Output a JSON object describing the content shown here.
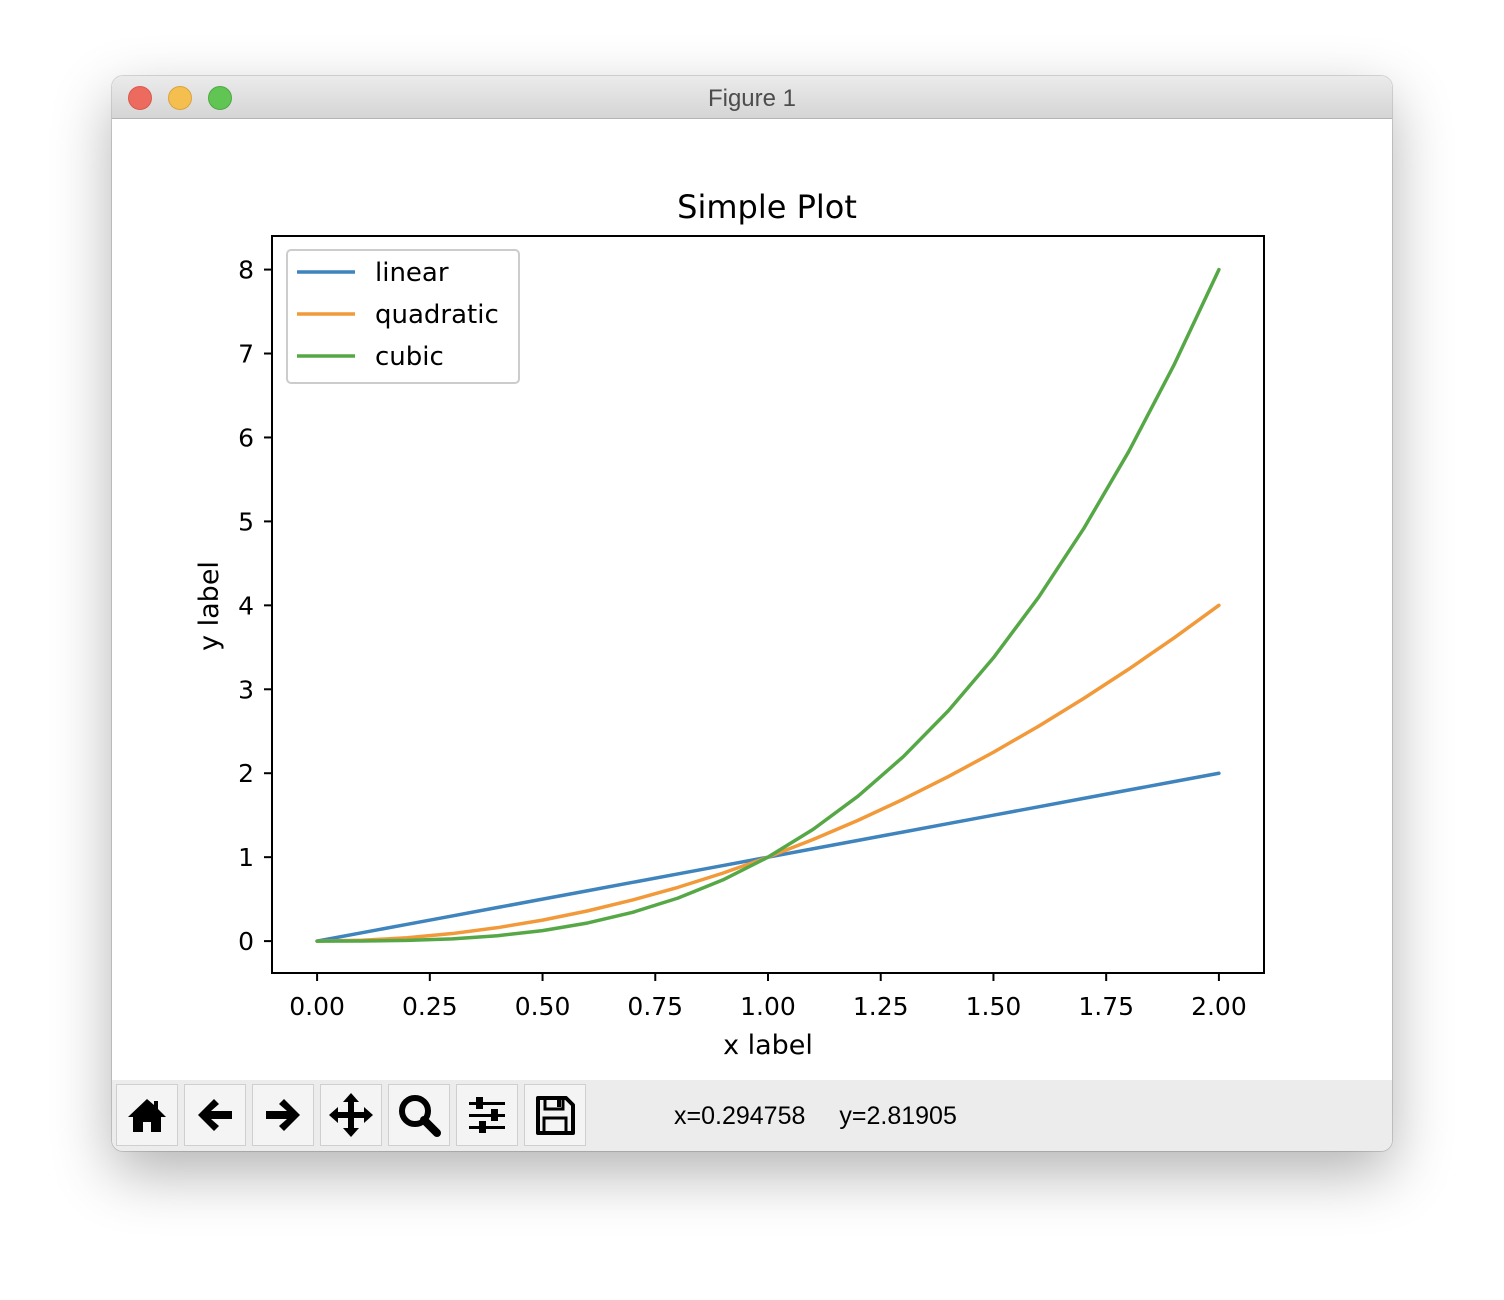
{
  "window": {
    "title": "Figure 1"
  },
  "toolbar": {
    "buttons": [
      {
        "icon": "home-icon"
      },
      {
        "icon": "back-arrow-icon"
      },
      {
        "icon": "forward-arrow-icon"
      },
      {
        "icon": "pan-move-icon"
      },
      {
        "icon": "zoom-magnifier-icon"
      },
      {
        "icon": "configure-subplots-icon"
      },
      {
        "icon": "save-floppy-icon"
      }
    ],
    "coords": {
      "x": "x=0.294758",
      "y": "y=2.81905"
    }
  },
  "chart_data": {
    "type": "line",
    "title": "Simple Plot",
    "xlabel": "x label",
    "ylabel": "y label",
    "xlim": [
      -0.1,
      2.1
    ],
    "ylim": [
      -0.38,
      8.4
    ],
    "xticks": [
      "0.00",
      "0.25",
      "0.50",
      "0.75",
      "1.00",
      "1.25",
      "1.50",
      "1.75",
      "2.00"
    ],
    "yticks": [
      "0",
      "1",
      "2",
      "3",
      "4",
      "5",
      "6",
      "7",
      "8"
    ],
    "grid": false,
    "legend_position": "upper-left",
    "x": [
      0,
      0.1,
      0.2,
      0.3,
      0.4,
      0.5,
      0.6,
      0.7,
      0.8,
      0.9,
      1.0,
      1.1,
      1.2,
      1.3,
      1.4,
      1.5,
      1.6,
      1.7,
      1.8,
      1.9,
      2.0
    ],
    "series": [
      {
        "name": "linear",
        "color": "#3f84bd",
        "values": [
          0,
          0.1,
          0.2,
          0.3,
          0.4,
          0.5,
          0.6,
          0.7,
          0.8,
          0.9,
          1.0,
          1.1,
          1.2,
          1.3,
          1.4,
          1.5,
          1.6,
          1.7,
          1.8,
          1.9,
          2.0
        ]
      },
      {
        "name": "quadratic",
        "color": "#f2993a",
        "values": [
          0,
          0.01,
          0.04,
          0.09,
          0.16,
          0.25,
          0.36,
          0.49,
          0.64,
          0.81,
          1.0,
          1.21,
          1.44,
          1.69,
          1.96,
          2.25,
          2.56,
          2.89,
          3.24,
          3.61,
          4.0
        ]
      },
      {
        "name": "cubic",
        "color": "#56a847",
        "values": [
          0,
          0.001,
          0.008,
          0.027,
          0.064,
          0.125,
          0.216,
          0.343,
          0.512,
          0.729,
          1.0,
          1.331,
          1.728,
          2.197,
          2.744,
          3.375,
          4.096,
          4.913,
          5.832,
          6.859,
          8.0
        ]
      }
    ]
  }
}
